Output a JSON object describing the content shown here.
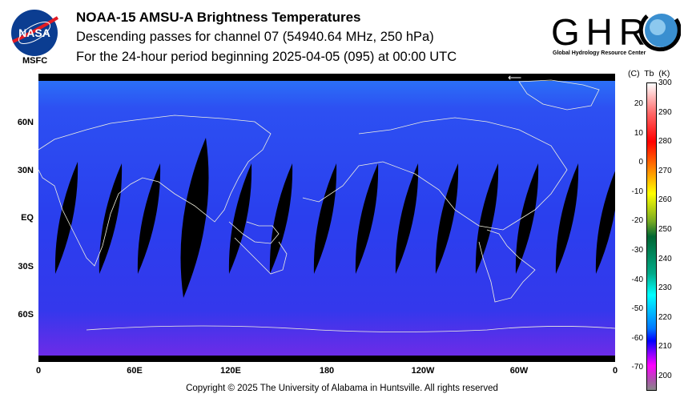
{
  "header": {
    "title": "NOAA-15 AMSU-A Brightness Temperatures",
    "subtitle": "Descending passes for channel 07 (54940.64 MHz, 250 hPa)",
    "period": "For the 24-hour period beginning 2025-04-05 (095) at 00:00 UTC"
  },
  "logos": {
    "nasa": "NASA",
    "msfc": "MSFC",
    "ghrc": "GHRC",
    "ghrc_full": "Global Hydrology Resource Center"
  },
  "map": {
    "lat_labels": [
      "60N",
      "30N",
      "EQ",
      "30S",
      "60S"
    ],
    "lon_labels": [
      "0",
      "60E",
      "120E",
      "180",
      "120W",
      "60W",
      "0"
    ],
    "arrow": "⟵"
  },
  "colorbar": {
    "header_c": "(C)",
    "header_tb": "Tb",
    "header_k": "(K)",
    "kelvin": [
      "300",
      "290",
      "280",
      "270",
      "260",
      "250",
      "240",
      "230",
      "220",
      "210",
      "200"
    ],
    "celsius": [
      "20",
      "10",
      "0",
      "-10",
      "-20",
      "-30",
      "-40",
      "-50",
      "-60",
      "-70"
    ]
  },
  "footer": {
    "copyright": "Copyright © 2025 The University of Alabama in Huntsville.  All rights reserved"
  }
}
